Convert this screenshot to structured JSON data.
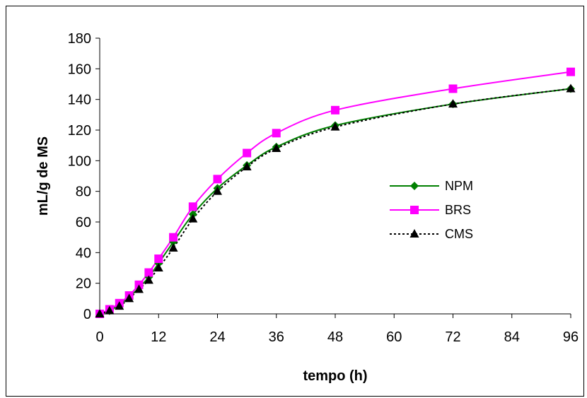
{
  "chart_data": {
    "type": "line",
    "title": "",
    "xlabel": "tempo (h)",
    "ylabel": "mL/g de MS",
    "xlim": [
      0,
      96
    ],
    "ylim": [
      0,
      180
    ],
    "xticks": [
      0,
      12,
      24,
      36,
      48,
      60,
      72,
      84,
      96
    ],
    "yticks": [
      0,
      20,
      40,
      60,
      80,
      100,
      120,
      140,
      160,
      180
    ],
    "grid": false,
    "legend_position": "right",
    "series": [
      {
        "name": "NPM",
        "color": "#008000",
        "marker": "diamond",
        "dash": "solid",
        "x": [
          0,
          2,
          4,
          6,
          8,
          10,
          12,
          15,
          19,
          24,
          30,
          36,
          48,
          72,
          96
        ],
        "y": [
          0,
          2,
          6,
          11,
          17,
          24,
          33,
          47,
          65,
          82,
          97,
          109,
          123,
          137,
          147
        ]
      },
      {
        "name": "BRS",
        "color": "#ff00ff",
        "marker": "square",
        "dash": "solid",
        "x": [
          0,
          2,
          4,
          6,
          8,
          10,
          12,
          15,
          19,
          24,
          30,
          36,
          48,
          72,
          96
        ],
        "y": [
          0,
          3,
          7,
          12,
          19,
          27,
          36,
          50,
          70,
          88,
          105,
          118,
          133,
          147,
          158
        ]
      },
      {
        "name": "CMS",
        "color": "#000000",
        "marker": "triangle",
        "dash": "dotted",
        "x": [
          0,
          2,
          4,
          6,
          8,
          10,
          12,
          15,
          19,
          24,
          30,
          36,
          48,
          72,
          96
        ],
        "y": [
          0,
          2,
          5,
          10,
          16,
          22,
          30,
          43,
          62,
          80,
          96,
          108,
          122,
          137,
          147
        ]
      }
    ]
  }
}
